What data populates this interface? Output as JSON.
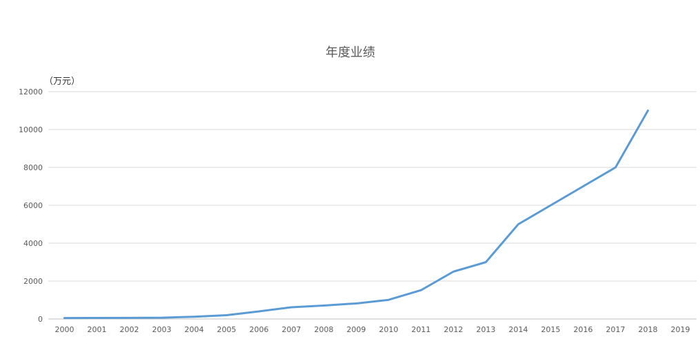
{
  "chart_data": {
    "type": "line",
    "title": "年度业绩",
    "unit_label": "（万元）",
    "xlabel": "",
    "ylabel": "",
    "categories": [
      "2000",
      "2001",
      "2002",
      "2003",
      "2004",
      "2005",
      "2006",
      "2007",
      "2008",
      "2009",
      "2010",
      "2011",
      "2012",
      "2013",
      "2014",
      "2015",
      "2016",
      "2017",
      "2018",
      "2019"
    ],
    "series": [
      {
        "color": "#5b9bd5",
        "values": [
          50,
          55,
          60,
          70,
          120,
          200,
          400,
          620,
          710,
          820,
          1010,
          1520,
          2500,
          3000,
          5000,
          6000,
          7000,
          8000,
          11000,
          null
        ]
      }
    ],
    "y_ticks": [
      0,
      2000,
      4000,
      6000,
      8000,
      10000,
      12000
    ],
    "ylim": [
      0,
      12000
    ],
    "grid": true,
    "legend": "none"
  }
}
